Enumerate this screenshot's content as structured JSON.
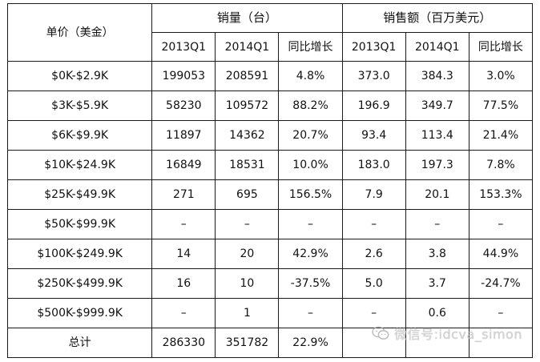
{
  "table": {
    "header": {
      "price": "单价（美金）",
      "units_group": "销量（台）",
      "revenue_group": "销售额（百万美元）",
      "units_cols": [
        "2013Q1",
        "2014Q1",
        "同比增长"
      ],
      "revenue_cols": [
        "2013Q1",
        "2014Q1",
        "同比增长"
      ]
    },
    "rows": [
      {
        "price": "$0K-$2.9K",
        "units_2013q1": "199053",
        "units_2014q1": "208591",
        "units_yoy": "4.8%",
        "rev_2013q1": "373.0",
        "rev_2014q1": "384.3",
        "rev_yoy": "3.0%"
      },
      {
        "price": "$3K-$5.9K",
        "units_2013q1": "58230",
        "units_2014q1": "109572",
        "units_yoy": "88.2%",
        "rev_2013q1": "196.9",
        "rev_2014q1": "349.7",
        "rev_yoy": "77.5%"
      },
      {
        "price": "$6K-$9.9K",
        "units_2013q1": "11897",
        "units_2014q1": "14362",
        "units_yoy": "20.7%",
        "rev_2013q1": "93.4",
        "rev_2014q1": "113.4",
        "rev_yoy": "21.4%"
      },
      {
        "price": "$10K-$24.9K",
        "units_2013q1": "16849",
        "units_2014q1": "18531",
        "units_yoy": "10.0%",
        "rev_2013q1": "183.0",
        "rev_2014q1": "197.3",
        "rev_yoy": "7.8%"
      },
      {
        "price": "$25K-$49.9K",
        "units_2013q1": "271",
        "units_2014q1": "695",
        "units_yoy": "156.5%",
        "rev_2013q1": "7.9",
        "rev_2014q1": "20.1",
        "rev_yoy": "153.3%"
      },
      {
        "price": "$50K-$99.9K",
        "units_2013q1": "–",
        "units_2014q1": "–",
        "units_yoy": "–",
        "rev_2013q1": "–",
        "rev_2014q1": "–",
        "rev_yoy": "–"
      },
      {
        "price": "$100K-$249.9K",
        "units_2013q1": "14",
        "units_2014q1": "20",
        "units_yoy": "42.9%",
        "rev_2013q1": "2.6",
        "rev_2014q1": "3.8",
        "rev_yoy": "44.9%"
      },
      {
        "price": "$250K-$499.9K",
        "units_2013q1": "16",
        "units_2014q1": "10",
        "units_yoy": "-37.5%",
        "rev_2013q1": "5.0",
        "rev_2014q1": "3.7",
        "rev_yoy": "-24.7%"
      },
      {
        "price": "$500K-$999.9K",
        "units_2013q1": "–",
        "units_2014q1": "1",
        "units_yoy": "–",
        "rev_2013q1": "–",
        "rev_2014q1": "0.6",
        "rev_yoy": "–"
      },
      {
        "price": "总计",
        "units_2013q1": "286330",
        "units_2014q1": "351782",
        "units_yoy": "22.9%",
        "rev_2013q1": "",
        "rev_2014q1": "",
        "rev_yoy": ""
      }
    ]
  },
  "watermark": {
    "text": "微信号:idcva_simon",
    "icon": "wechat-icon",
    "color": "#c9c9c9"
  }
}
